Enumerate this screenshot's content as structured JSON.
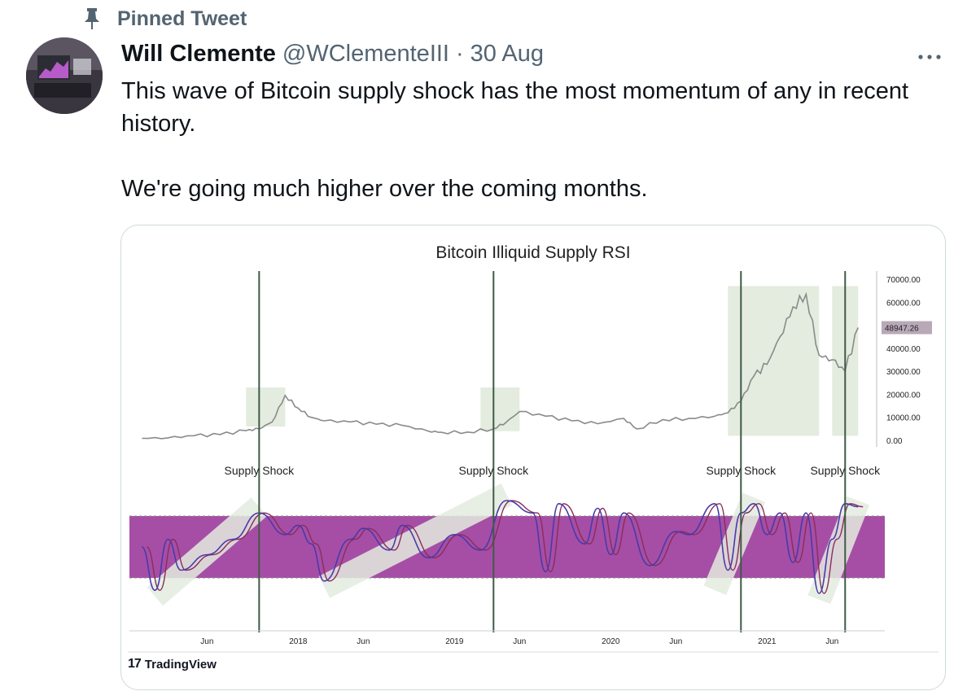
{
  "pinned": {
    "label": "Pinned Tweet",
    "icon": "pin-icon"
  },
  "tweet": {
    "author_name": "Will Clemente",
    "handle": "@WClementeIII",
    "separator": "·",
    "date": "30 Aug",
    "more_icon": "more-dots-icon",
    "text_line1": "This wave of Bitcoin supply shock has the most momentum of any in recent history.",
    "text_line2": "We're going much higher over the coming months."
  },
  "colors": {
    "price_line": "#8a8a8a",
    "rsi_band": "#a64ea6",
    "rsi_line_fast": "#4a3aa8",
    "rsi_line_slow": "#8a2d5a",
    "highlight": "#e3ecdf",
    "shock_line": "#3f5a45"
  },
  "chart_data": {
    "type": "line",
    "title": "Bitcoin Illiquid Supply RSI",
    "x_ticks": [
      "Jun",
      "2018",
      "Jun",
      "2019",
      "Jun",
      "2020",
      "Jun",
      "2021",
      "Jun"
    ],
    "y_ticks": [
      "70000.00",
      "60000.00",
      "50000.00",
      "40000.00",
      "30000.00",
      "20000.00",
      "10000.00",
      "0.00"
    ],
    "ylim": [
      0,
      70000
    ],
    "last_price_label": "48947.26",
    "shock_label": "Supply Shock",
    "shock_events": [
      {
        "label": "Supply Shock",
        "date": "2017-10"
      },
      {
        "label": "Supply Shock",
        "date": "2019-04"
      },
      {
        "label": "Supply Shock",
        "date": "2020-11"
      },
      {
        "label": "Supply Shock",
        "date": "2021-07"
      }
    ],
    "price_series": {
      "name": "BTC",
      "points": [
        [
          "2017-01",
          900
        ],
        [
          "2017-03",
          1100
        ],
        [
          "2017-05",
          2000
        ],
        [
          "2017-07",
          2500
        ],
        [
          "2017-09",
          4200
        ],
        [
          "2017-10",
          5000
        ],
        [
          "2017-11",
          8000
        ],
        [
          "2017-12",
          19500
        ],
        [
          "2018-01",
          14000
        ],
        [
          "2018-02",
          10000
        ],
        [
          "2018-03",
          8500
        ],
        [
          "2018-05",
          8000
        ],
        [
          "2018-07",
          7000
        ],
        [
          "2018-09",
          6500
        ],
        [
          "2018-11",
          4000
        ],
        [
          "2018-12",
          3500
        ],
        [
          "2019-02",
          3600
        ],
        [
          "2019-04",
          5000
        ],
        [
          "2019-05",
          8000
        ],
        [
          "2019-06",
          12500
        ],
        [
          "2019-08",
          10500
        ],
        [
          "2019-10",
          8500
        ],
        [
          "2019-12",
          7200
        ],
        [
          "2020-02",
          9500
        ],
        [
          "2020-03",
          5000
        ],
        [
          "2020-05",
          9000
        ],
        [
          "2020-07",
          9500
        ],
        [
          "2020-09",
          10500
        ],
        [
          "2020-10",
          12000
        ],
        [
          "2020-11",
          17000
        ],
        [
          "2020-12",
          28000
        ],
        [
          "2021-01",
          33000
        ],
        [
          "2021-02",
          45000
        ],
        [
          "2021-03",
          58000
        ],
        [
          "2021-04",
          63500
        ],
        [
          "2021-05",
          37000
        ],
        [
          "2021-06",
          35000
        ],
        [
          "2021-07",
          30000
        ],
        [
          "2021-08",
          48947.26
        ]
      ]
    },
    "rsi_band": [
      30,
      70
    ],
    "rsi_series": [
      {
        "name": "RSI",
        "points": [
          [
            "2017-01",
            50
          ],
          [
            "2017-02",
            22
          ],
          [
            "2017-03",
            55
          ],
          [
            "2017-04",
            35
          ],
          [
            "2017-06",
            45
          ],
          [
            "2017-08",
            55
          ],
          [
            "2017-10",
            72
          ],
          [
            "2017-12",
            58
          ],
          [
            "2018-01",
            64
          ],
          [
            "2018-02",
            52
          ],
          [
            "2018-03",
            28
          ],
          [
            "2018-05",
            55
          ],
          [
            "2018-06",
            62
          ],
          [
            "2018-08",
            48
          ],
          [
            "2018-09",
            64
          ],
          [
            "2018-11",
            43
          ],
          [
            "2019-01",
            58
          ],
          [
            "2019-03",
            48
          ],
          [
            "2019-05",
            80
          ],
          [
            "2019-07",
            72
          ],
          [
            "2019-08",
            34
          ],
          [
            "2019-09",
            78
          ],
          [
            "2019-11",
            52
          ],
          [
            "2019-12",
            75
          ],
          [
            "2020-01",
            45
          ],
          [
            "2020-02",
            72
          ],
          [
            "2020-04",
            38
          ],
          [
            "2020-06",
            60
          ],
          [
            "2020-07",
            58
          ],
          [
            "2020-09",
            78
          ],
          [
            "2020-10",
            35
          ],
          [
            "2020-11",
            72
          ],
          [
            "2020-12",
            78
          ],
          [
            "2021-01",
            58
          ],
          [
            "2021-02",
            72
          ],
          [
            "2021-03",
            40
          ],
          [
            "2021-04",
            72
          ],
          [
            "2021-05",
            20
          ],
          [
            "2021-06",
            55
          ],
          [
            "2021-07",
            78
          ],
          [
            "2021-08",
            76
          ]
        ]
      }
    ]
  },
  "brand": {
    "logo_mark": "17",
    "name": "TradingView"
  }
}
